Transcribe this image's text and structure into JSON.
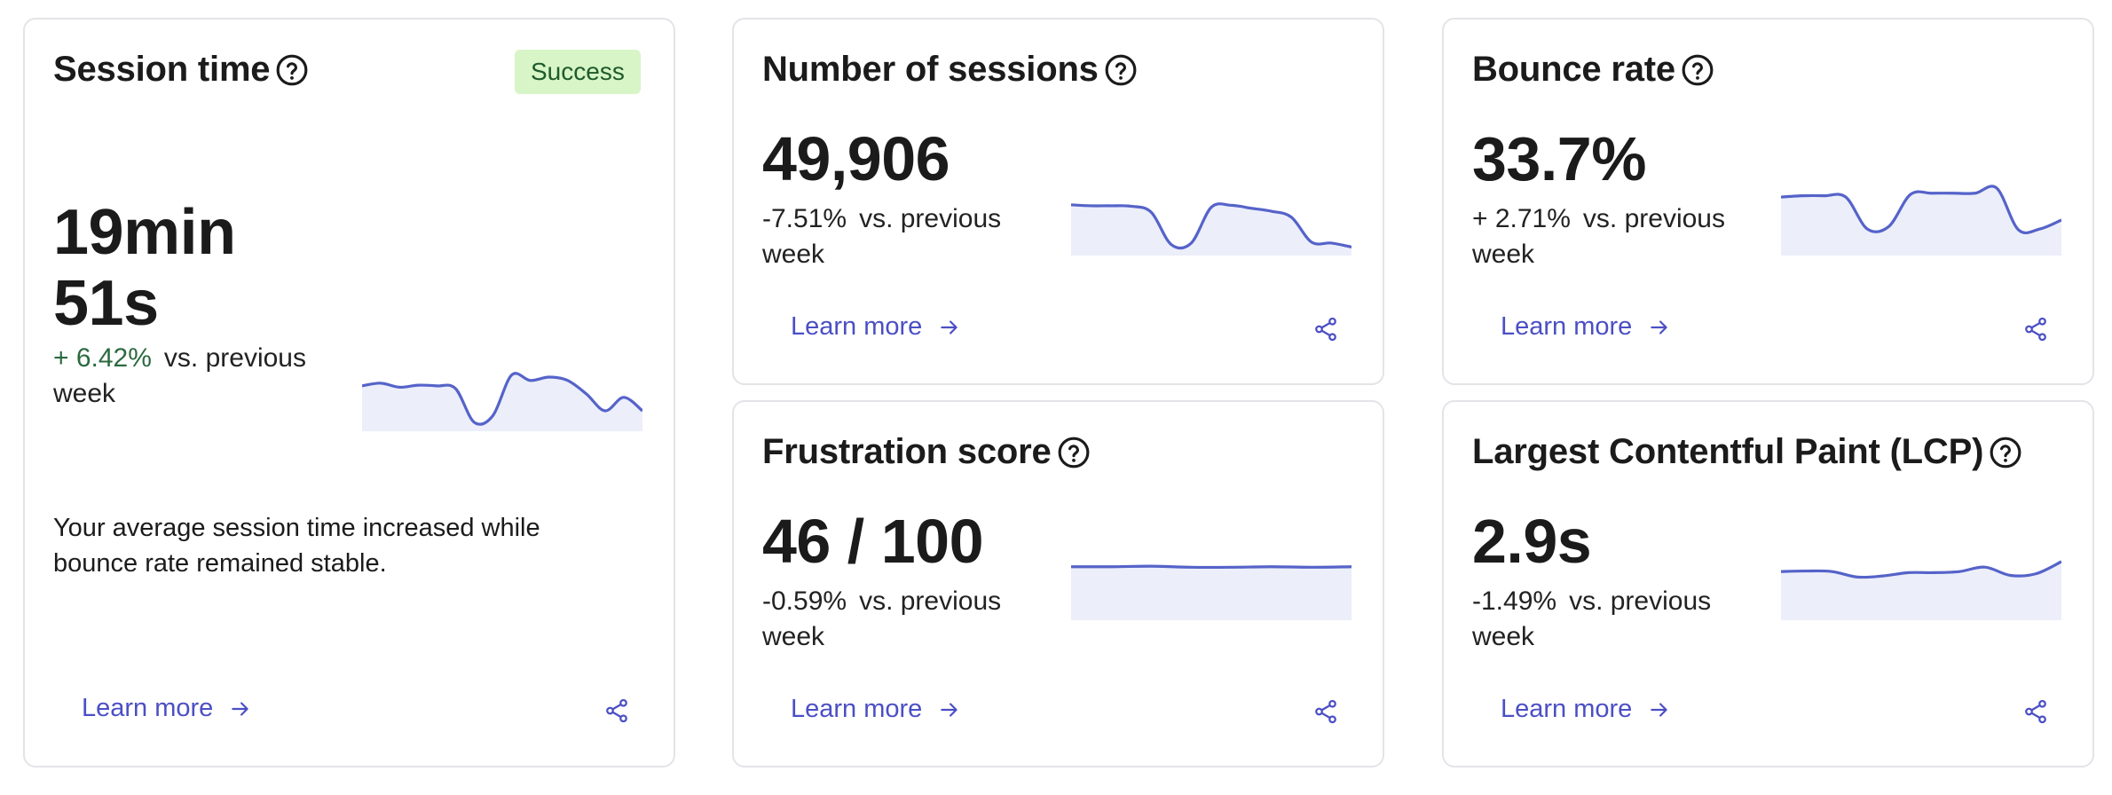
{
  "colors": {
    "accent": "#4b4fc4",
    "spark_line": "#5563c9",
    "spark_fill": "#eceefa",
    "badge_bg": "#d7f5c6",
    "badge_text": "#1f5a2c",
    "positive": "#2b6a3f"
  },
  "cards": {
    "session_time": {
      "title": "Session time",
      "badge": "Success",
      "value_line1": "19min",
      "value_line2": "51s",
      "change": "+ 6.42%",
      "change_suffix": "vs. previous",
      "change_suffix2": "week",
      "description_line1": "Your average session time increased while",
      "description_line2": "bounce rate remained stable.",
      "learn_more": "Learn more",
      "icons": [
        "help-circle-icon",
        "arrow-right-icon",
        "share-icon"
      ]
    },
    "sessions": {
      "title": "Number of sessions",
      "value": "49,906",
      "change": "-7.51%",
      "change_suffix": "vs. previous",
      "change_suffix2": "week",
      "learn_more": "Learn more"
    },
    "bounce": {
      "title": "Bounce rate",
      "value": "33.7%",
      "change": "+ 2.71%",
      "change_suffix": "vs. previous",
      "change_suffix2": "week",
      "learn_more": "Learn more"
    },
    "frustration": {
      "title": "Frustration score",
      "value": "46 / 100",
      "change": "-0.59%",
      "change_suffix": "vs. previous",
      "change_suffix2": "week",
      "learn_more": "Learn more"
    },
    "lcp": {
      "title": "Largest Contentful Paint (LCP)",
      "value": "2.9s",
      "change": "-1.49%",
      "change_suffix": "vs. previous",
      "change_suffix2": "week",
      "learn_more": "Learn more"
    }
  },
  "chart_data": [
    {
      "type": "area",
      "name_ref": "session_time",
      "values": [
        0.62,
        0.66,
        0.6,
        0.63,
        0.62,
        0.58,
        0.08,
        0.18,
        0.78,
        0.7,
        0.75,
        0.7,
        0.5,
        0.25,
        0.45,
        0.25
      ],
      "ylim": [
        0,
        1
      ]
    },
    {
      "type": "area",
      "name_ref": "sessions",
      "values": [
        0.95,
        0.93,
        0.93,
        0.92,
        0.8,
        0.15,
        0.18,
        0.9,
        0.94,
        0.88,
        0.82,
        0.7,
        0.2,
        0.18,
        0.1
      ],
      "ylim": [
        0,
        1
      ]
    },
    {
      "type": "area",
      "name_ref": "bounce",
      "values": [
        0.86,
        0.88,
        0.88,
        0.86,
        0.36,
        0.4,
        0.9,
        0.92,
        0.92,
        0.92,
        1.0,
        0.35,
        0.36,
        0.5
      ],
      "ylim": [
        0,
        1
      ]
    },
    {
      "type": "area",
      "name_ref": "frustration",
      "values": [
        0.97,
        0.97,
        0.98,
        0.96,
        0.96,
        0.97,
        0.96,
        0.97
      ],
      "ylim": [
        0,
        1
      ]
    },
    {
      "type": "area",
      "name_ref": "lcp",
      "values": [
        0.82,
        0.83,
        0.82,
        0.72,
        0.74,
        0.8,
        0.8,
        0.82,
        0.9,
        0.75,
        0.78,
        1.0
      ],
      "ylim": [
        0,
        1
      ]
    }
  ]
}
